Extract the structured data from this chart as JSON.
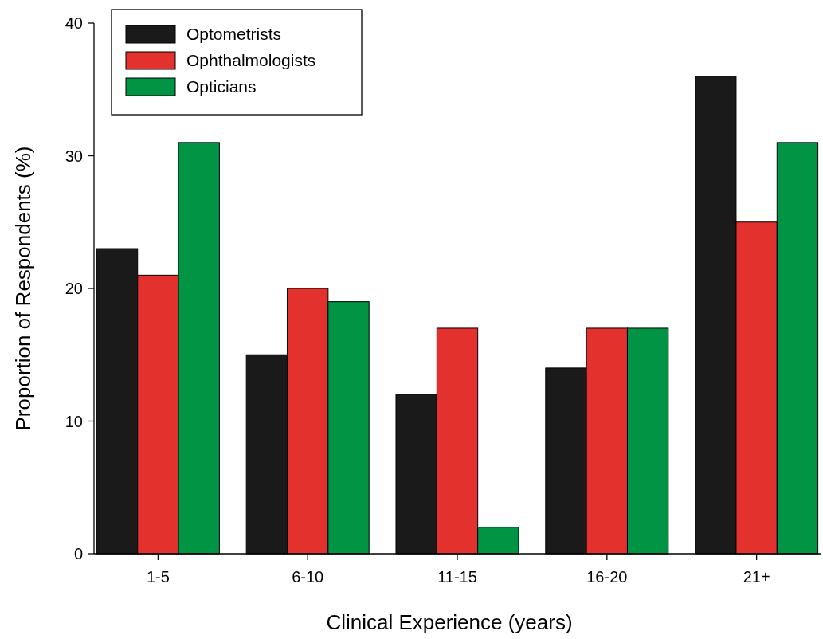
{
  "chart_data": {
    "type": "bar",
    "xlabel": "Clinical Experience (years)",
    "ylabel": "Proportion of Respondents (%)",
    "categories": [
      "1-5",
      "6-10",
      "11-15",
      "16-20",
      "21+"
    ],
    "series": [
      {
        "name": "Optometrists",
        "color": "#1a1a1a",
        "values": [
          23,
          15,
          12,
          14,
          36
        ]
      },
      {
        "name": "Ophthalmologists",
        "color": "#e3312d",
        "values": [
          21,
          20,
          17,
          17,
          25
        ]
      },
      {
        "name": "Opticians",
        "color": "#009444",
        "values": [
          31,
          19,
          2,
          17,
          31
        ]
      }
    ],
    "ylim": [
      0,
      40
    ],
    "yticks": [
      0,
      10,
      20,
      30,
      40
    ],
    "grid": false,
    "legend": "top left"
  }
}
